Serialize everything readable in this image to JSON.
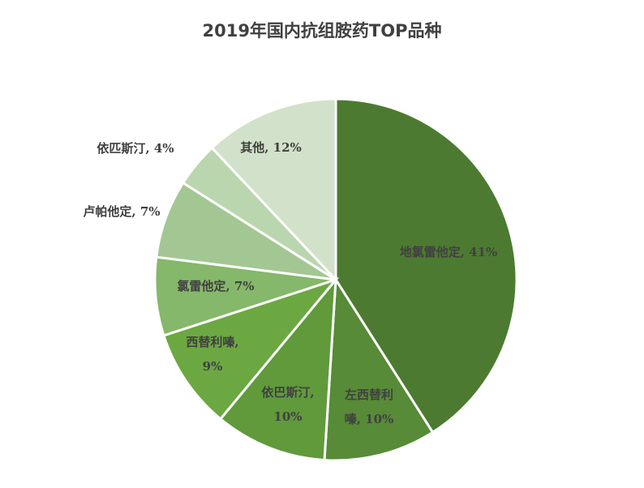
{
  "chart_data": {
    "type": "pie",
    "title": "2019年国内抗组胺药TOP品种",
    "slices": [
      {
        "name": "地氯雷他定",
        "value": 41,
        "label": [
          "地氯雷他定, 41%"
        ],
        "color": "#4d7a31",
        "text_color": "#404040"
      },
      {
        "name": "左西替利嗪",
        "value": 10,
        "label": [
          "左西替利",
          "嗪, 10%"
        ],
        "color": "#578b37",
        "text_color": "#ffffff"
      },
      {
        "name": "依巴斯汀",
        "value": 10,
        "label": [
          "依巴斯汀,",
          "10%"
        ],
        "color": "#609a3b",
        "text_color": "#ffffff"
      },
      {
        "name": "西替利嗪",
        "value": 9,
        "label": [
          "西替利嗪,",
          "9%"
        ],
        "color": "#6ca842",
        "text_color": "#ffffff"
      },
      {
        "name": "氯雷他定",
        "value": 7,
        "label": [
          "氯雷他定, 7%"
        ],
        "color": "#85b86a",
        "text_color": "#404040"
      },
      {
        "name": "卢帕他定",
        "value": 7,
        "label": [
          "卢帕他定, 7%"
        ],
        "color": "#a3c793",
        "text_color": "#404040"
      },
      {
        "name": "依匹斯汀",
        "value": 4,
        "label": [
          "依匹斯汀, 4%"
        ],
        "color": "#bad6ae",
        "text_color": "#404040"
      },
      {
        "name": "其他",
        "value": 12,
        "label": [
          "其他, 12%"
        ],
        "color": "#d2e1c9",
        "text_color": "#404040"
      }
    ]
  }
}
